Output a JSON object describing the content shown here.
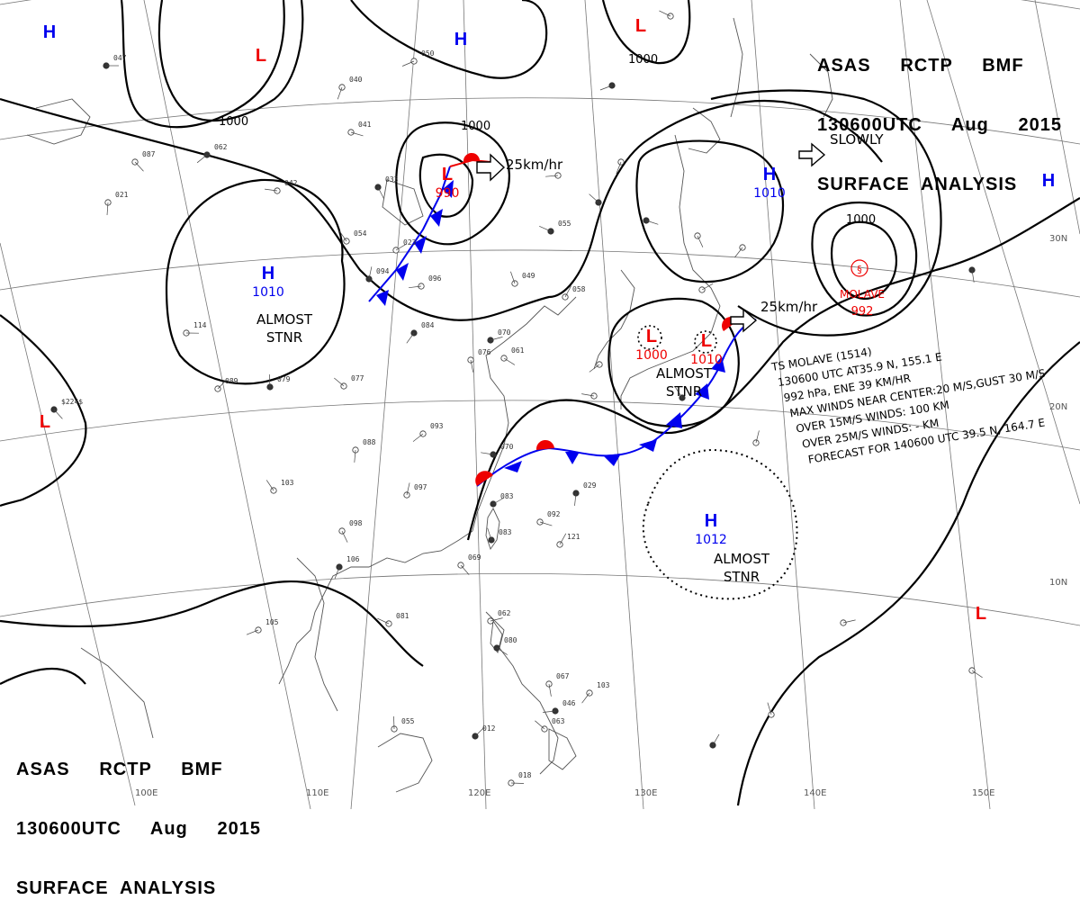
{
  "header_top": {
    "line1": "ASAS     RCTP     BMF",
    "line2": "130600UTC     Aug     2015",
    "line3": "SURFACE  ANALYSIS"
  },
  "header_bottom": {
    "line1": "ASAS     RCTP     BMF",
    "line2": "130600UTC     Aug     2015",
    "line3": "SURFACE  ANALYSIS"
  },
  "pressure_systems": [
    {
      "type": "H",
      "value": ""
    },
    {
      "type": "L",
      "value": ""
    },
    {
      "type": "H",
      "value": ""
    },
    {
      "type": "L",
      "value": ""
    },
    {
      "type": "L",
      "value": "990"
    },
    {
      "type": "H",
      "value": "1010"
    },
    {
      "type": "H",
      "value": "1010"
    },
    {
      "type": "H",
      "value": ""
    },
    {
      "type": "L",
      "value": "1000"
    },
    {
      "type": "L",
      "value": "1010"
    },
    {
      "type": "H",
      "value": "1012"
    },
    {
      "type": "L",
      "value": ""
    },
    {
      "type": "L",
      "value": ""
    }
  ],
  "isobar_labels": [
    "1000",
    "1000",
    "1000",
    "1000"
  ],
  "movements": [
    "25km/hr",
    "SLOWLY",
    "25km/hr"
  ],
  "almost_stnr": [
    "ALMOST\nSTNR",
    "ALMOST\nSTNR",
    "ALMOST\nSTNR"
  ],
  "typhoon": {
    "name": "MOLAVE",
    "pressure": "992"
  },
  "advisory": [
    "TS  MOLAVE  (1514)",
    "130600  UTC  AT35.9 N, 155.1 E",
    "992 hPa, ENE  39 KM/HR",
    "MAX WINDS NEAR CENTER:20 M/S,GUST 30 M/S",
    "OVER 15M/S WINDS: 100 KM",
    "OVER 25M/S WINDS: - KM",
    "FORECAST FOR 140600 UTC 39.5 N, 164.7 E"
  ],
  "latitude_labels": [
    "30N",
    "20N",
    "10N"
  ],
  "longitude_labels": [
    "100E",
    "110E",
    "120E",
    "130E",
    "140E",
    "150E"
  ],
  "station_samples": [
    "047",
    "087",
    "021",
    "062",
    "042",
    "054",
    "094",
    "023",
    "041",
    "033",
    "040",
    "050",
    "055",
    "049",
    "058",
    "070",
    "061",
    "076",
    "084",
    "096",
    "077",
    "079",
    "089",
    "114",
    "$224$",
    "088",
    "093",
    "070",
    "103",
    "097",
    "083",
    "092",
    "098",
    "106",
    "105",
    "081",
    "083",
    "121",
    "062",
    "080",
    "067",
    "103",
    "046",
    "063",
    "055",
    "012",
    "018",
    "069",
    "029"
  ],
  "colors": {
    "high": "#0000ee",
    "low": "#ee0000",
    "isobar": "#000000",
    "front_cold": "#0000ee",
    "front_warm": "#ee0000",
    "grid": "#666666",
    "coast": "#555555"
  }
}
